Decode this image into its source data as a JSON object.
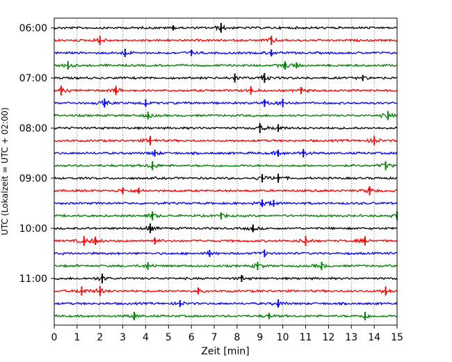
{
  "chart_data": {
    "type": "line",
    "title": "",
    "xlabel": "Zeit  [min]",
    "ylabel": "UTC (Lokalzeit = UTC + 02:00)",
    "xlim": [
      0,
      15
    ],
    "x_ticks": [
      0,
      1,
      2,
      3,
      4,
      5,
      6,
      7,
      8,
      9,
      10,
      11,
      12,
      13,
      14,
      15
    ],
    "x_tick_labels": [
      "0",
      "1",
      "2",
      "3",
      "4",
      "5",
      "6",
      "7",
      "8",
      "9",
      "10",
      "11",
      "12",
      "13",
      "14",
      "15"
    ],
    "y_tick_labels": [
      "06:00",
      "07:00",
      "08:00",
      "09:00",
      "10:00",
      "11:00"
    ],
    "y_tick_rows": [
      0,
      4,
      8,
      12,
      16,
      20
    ],
    "vertical_grid": "dotted",
    "row_interval_min": 15,
    "colors": [
      "#000000",
      "#ff0000",
      "#0000ff",
      "#008000"
    ],
    "series": [
      {
        "start": "06:00",
        "color": "#000000",
        "spikes": [
          [
            7.3,
            1.0
          ],
          [
            5.2,
            0.35
          ]
        ]
      },
      {
        "start": "06:15",
        "color": "#ff0000",
        "spikes": [
          [
            2.0,
            0.9
          ],
          [
            9.5,
            0.9
          ]
        ]
      },
      {
        "start": "06:30",
        "color": "#0000ff",
        "spikes": [
          [
            3.1,
            0.8
          ],
          [
            6.0,
            0.5
          ],
          [
            9.5,
            0.6
          ]
        ]
      },
      {
        "start": "06:45",
        "color": "#008000",
        "spikes": [
          [
            0.6,
            0.8
          ],
          [
            10.1,
            0.8
          ],
          [
            10.6,
            0.5
          ]
        ]
      },
      {
        "start": "07:00",
        "color": "#000000",
        "spikes": [
          [
            7.9,
            0.9
          ],
          [
            9.2,
            1.0
          ],
          [
            13.5,
            0.5
          ]
        ]
      },
      {
        "start": "07:15",
        "color": "#ff0000",
        "spikes": [
          [
            0.3,
            1.0
          ],
          [
            2.7,
            0.9
          ],
          [
            8.6,
            0.8
          ],
          [
            10.8,
            0.6
          ]
        ]
      },
      {
        "start": "07:30",
        "color": "#0000ff",
        "spikes": [
          [
            2.2,
            0.9
          ],
          [
            4.0,
            0.7
          ],
          [
            9.2,
            0.7
          ],
          [
            10.0,
            0.8
          ]
        ]
      },
      {
        "start": "07:45",
        "color": "#008000",
        "spikes": [
          [
            4.1,
            0.7
          ],
          [
            14.6,
            0.9
          ]
        ]
      },
      {
        "start": "08:00",
        "color": "#000000",
        "spikes": [
          [
            9.0,
            1.0
          ],
          [
            9.8,
            0.7
          ]
        ]
      },
      {
        "start": "08:15",
        "color": "#ff0000",
        "spikes": [
          [
            4.2,
            0.9
          ],
          [
            14.0,
            0.9
          ]
        ]
      },
      {
        "start": "08:30",
        "color": "#0000ff",
        "spikes": [
          [
            4.4,
            0.6
          ],
          [
            9.8,
            0.6
          ],
          [
            10.9,
            0.8
          ]
        ]
      },
      {
        "start": "08:45",
        "color": "#008000",
        "spikes": [
          [
            4.3,
            0.9
          ],
          [
            14.5,
            0.9
          ]
        ]
      },
      {
        "start": "09:00",
        "color": "#000000",
        "spikes": [
          [
            9.1,
            0.8
          ],
          [
            9.8,
            0.9
          ]
        ]
      },
      {
        "start": "09:15",
        "color": "#ff0000",
        "spikes": [
          [
            3.0,
            0.6
          ],
          [
            3.7,
            0.5
          ],
          [
            13.8,
            0.9
          ]
        ]
      },
      {
        "start": "09:30",
        "color": "#0000ff",
        "spikes": [
          [
            9.1,
            0.7
          ],
          [
            9.6,
            0.6
          ]
        ]
      },
      {
        "start": "09:45",
        "color": "#008000",
        "spikes": [
          [
            4.3,
            0.9
          ],
          [
            7.3,
            0.6
          ],
          [
            15.0,
            0.9
          ]
        ]
      },
      {
        "start": "10:00",
        "color": "#000000",
        "spikes": [
          [
            4.2,
            1.0
          ],
          [
            8.7,
            0.7
          ]
        ]
      },
      {
        "start": "10:15",
        "color": "#ff0000",
        "spikes": [
          [
            1.3,
            1.0
          ],
          [
            1.8,
            0.8
          ],
          [
            4.4,
            0.6
          ],
          [
            11.0,
            1.0
          ],
          [
            13.6,
            0.9
          ]
        ]
      },
      {
        "start": "10:30",
        "color": "#0000ff",
        "spikes": [
          [
            6.8,
            0.6
          ],
          [
            9.2,
            0.7
          ]
        ]
      },
      {
        "start": "10:45",
        "color": "#008000",
        "spikes": [
          [
            4.1,
            0.7
          ],
          [
            8.9,
            0.8
          ],
          [
            11.7,
            0.8
          ]
        ]
      },
      {
        "start": "11:00",
        "color": "#000000",
        "spikes": [
          [
            2.1,
            1.0
          ],
          [
            8.2,
            0.6
          ]
        ]
      },
      {
        "start": "11:15",
        "color": "#ff0000",
        "spikes": [
          [
            1.2,
            0.9
          ],
          [
            2.0,
            1.0
          ],
          [
            6.3,
            0.6
          ],
          [
            14.5,
            0.9
          ]
        ]
      },
      {
        "start": "11:30",
        "color": "#0000ff",
        "spikes": [
          [
            5.5,
            0.6
          ],
          [
            9.8,
            0.8
          ]
        ]
      },
      {
        "start": "11:45",
        "color": "#008000",
        "spikes": [
          [
            3.5,
            0.8
          ],
          [
            9.4,
            0.5
          ],
          [
            13.6,
            0.8
          ]
        ]
      }
    ]
  }
}
